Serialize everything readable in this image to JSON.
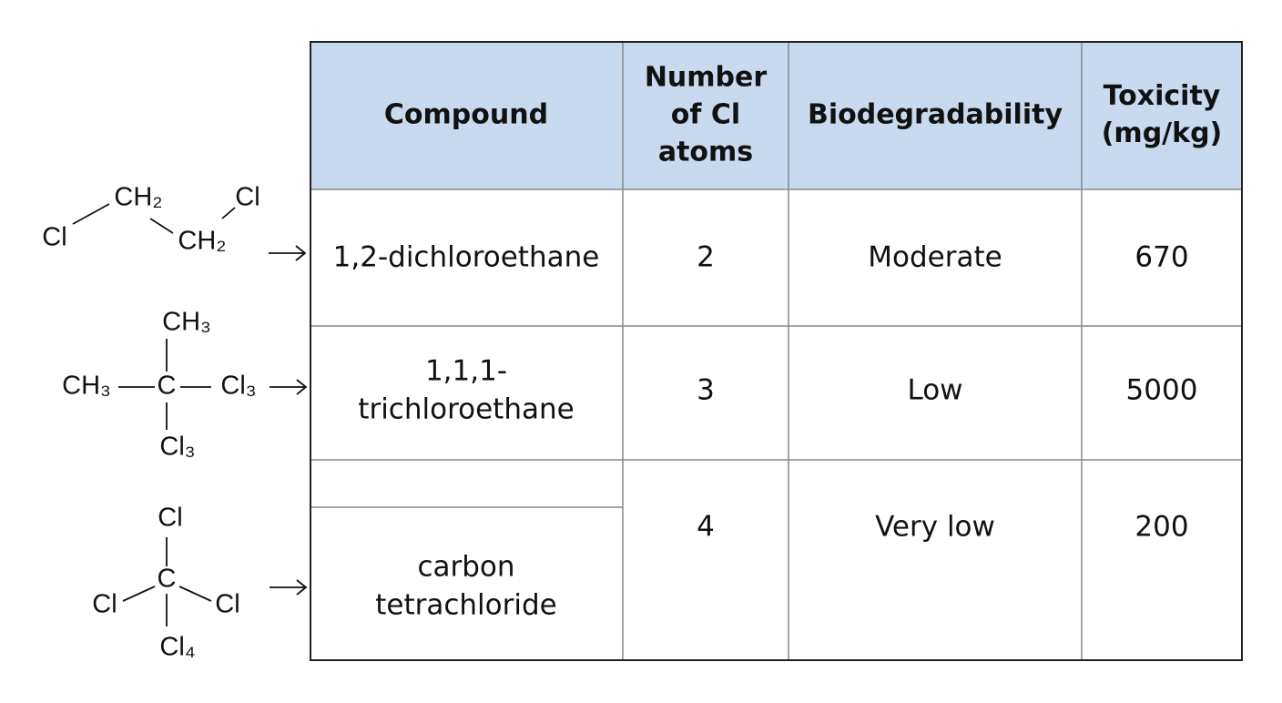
{
  "table": {
    "header": [
      [
        "Compound"
      ],
      [
        "Number",
        "of Cl",
        "atoms"
      ],
      [
        "Biodegradability"
      ],
      [
        "Toxicity",
        "(mg/kg)"
      ]
    ],
    "rows": [
      [
        [
          "1,2-dichloroethane"
        ],
        [
          "2"
        ],
        [
          "Moderate"
        ],
        [
          "670"
        ]
      ],
      [
        [
          "1,1,1-",
          "trichloroethane"
        ],
        [
          "3"
        ],
        [
          "Low"
        ],
        [
          "5000"
        ]
      ],
      [
        [
          "carbon",
          "tetrachloride"
        ],
        [
          "4"
        ],
        [
          "Very low"
        ],
        [
          "200"
        ]
      ]
    ]
  },
  "structures": [
    {
      "labels": [
        "Cl",
        "CH₂",
        "Cl",
        "CH₂"
      ]
    },
    {
      "labels": [
        "CH₃",
        "CH₃",
        "C",
        "Cl₃",
        "Cl₃"
      ]
    },
    {
      "labels": [
        "Cl",
        "C",
        "Cl",
        "Cl",
        "Cl₄"
      ]
    }
  ]
}
